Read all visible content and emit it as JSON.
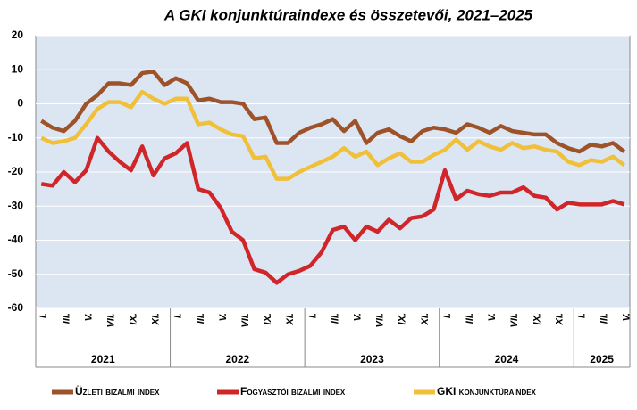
{
  "chart_data": {
    "type": "line",
    "title": "A GKI konjunktúraindexe és összetevői, 2021–2025",
    "categories": [
      "I.",
      null,
      "III.",
      null,
      "V.",
      null,
      "VII.",
      null,
      "IX.",
      null,
      "XI.",
      null,
      "I.",
      null,
      "III.",
      null,
      "V.",
      null,
      "VII.",
      null,
      "IX.",
      null,
      "XI.",
      null,
      "I.",
      null,
      "III.",
      null,
      "V.",
      null,
      "VII.",
      null,
      "IX.",
      null,
      "XI.",
      null,
      "I.",
      null,
      "III.",
      null,
      "V.",
      null,
      "VII.",
      null,
      "IX.",
      null,
      "XI.",
      null,
      "I.",
      null,
      "III.",
      null,
      "V."
    ],
    "years": [
      "2021",
      "2022",
      "2023",
      "2024",
      "2025"
    ],
    "series": [
      {
        "name": "Üzleti bizalmi index",
        "color": "#9e5229",
        "values": [
          -5,
          -7,
          -8,
          -5,
          0,
          2.5,
          6,
          6,
          5.5,
          9,
          9.5,
          5.5,
          7.5,
          6,
          1,
          1.5,
          0.5,
          0.5,
          0,
          -4.5,
          -4,
          -11.5,
          -11.5,
          -8.5,
          -7,
          -6,
          -4.5,
          -8,
          -5,
          -11.5,
          -8.5,
          -7.5,
          -9.5,
          -11,
          -8,
          -7,
          -7.5,
          -8.5,
          -6,
          -7,
          -8.5,
          -6.5,
          -8,
          -8.5,
          -9,
          -9,
          -11.5,
          -13,
          -14,
          -12,
          -12.5,
          -11.5,
          -14
        ]
      },
      {
        "name": "Fogyasztói bizalmi index",
        "color": "#d0262a",
        "values": [
          -23.5,
          -24,
          -20,
          -23,
          -19.5,
          -10,
          -14,
          -17,
          -19.5,
          -12.5,
          -21,
          -16,
          -14.5,
          -11.5,
          -25,
          -26,
          -30.5,
          -37.5,
          -40,
          -48.5,
          -49.5,
          -52.5,
          -50,
          -49,
          -47.5,
          -43.5,
          -37,
          -36,
          -40,
          -36,
          -37.5,
          -34,
          -36.5,
          -33.5,
          -33,
          -31,
          -19.5,
          -28,
          -25.5,
          -26.5,
          -27,
          -26,
          -26,
          -24.5,
          -27,
          -27.5,
          -31,
          -29,
          -29.5,
          -29.5,
          -29.5,
          -28.5,
          -29.5
        ]
      },
      {
        "name": "GKI konjunktúraindex",
        "color": "#f0c03a",
        "values": [
          -10,
          -11.5,
          -11,
          -10,
          -6,
          -1.5,
          0.5,
          0.5,
          -1,
          3.5,
          1.5,
          0,
          1.5,
          1.5,
          -6,
          -5.5,
          -7.5,
          -9,
          -9.5,
          -16,
          -15.5,
          -22,
          -22,
          -20,
          -18.5,
          -17,
          -15.5,
          -13,
          -15.5,
          -14,
          -18,
          -16,
          -14.5,
          -17,
          -17,
          -15,
          -13.5,
          -10.5,
          -13.5,
          -11,
          -12.5,
          -13.5,
          -11.5,
          -13,
          -12.5,
          -13.5,
          -14,
          -17,
          -18,
          -16.5,
          -17,
          -15.5,
          -18
        ]
      }
    ],
    "ylim": [
      -60,
      20
    ],
    "yticks": [
      20,
      10,
      0,
      -10,
      -20,
      -30,
      -40,
      -50,
      -60
    ],
    "grid": true
  }
}
